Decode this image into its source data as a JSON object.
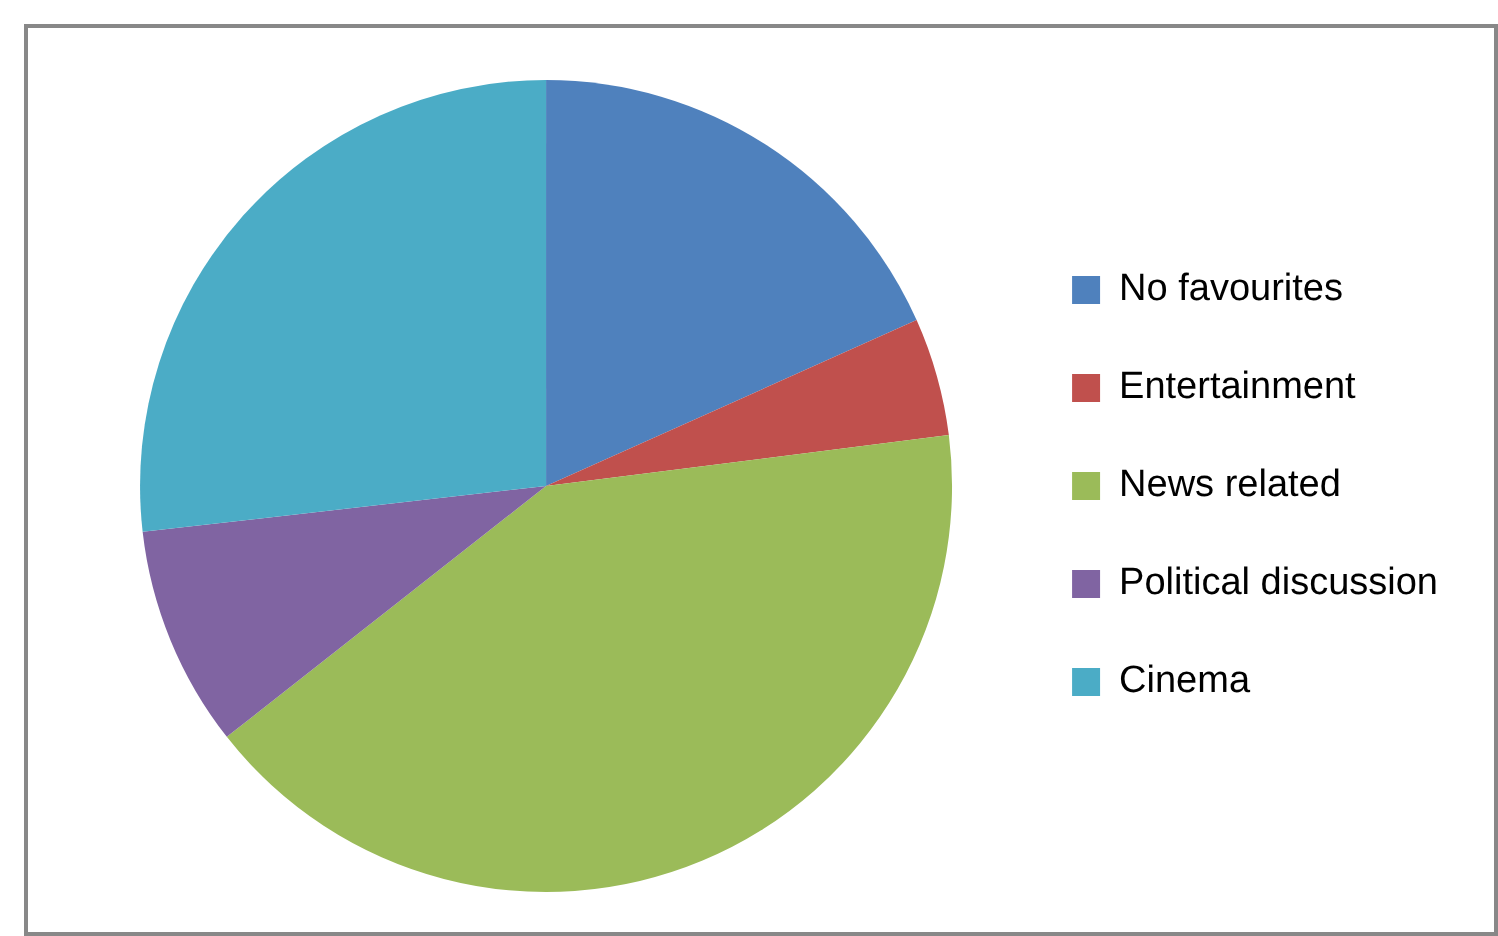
{
  "chart_data": {
    "type": "pie",
    "categories": [
      "No favourites",
      "Entertainment",
      "News related",
      "Political discussion",
      "Cinema"
    ],
    "values": [
      18.3,
      4.7,
      41.4,
      8.8,
      26.8
    ],
    "colors": [
      "#4f81bd",
      "#c0504d",
      "#9bbb59",
      "#8064a2",
      "#4bacc6"
    ],
    "legend": "right"
  }
}
